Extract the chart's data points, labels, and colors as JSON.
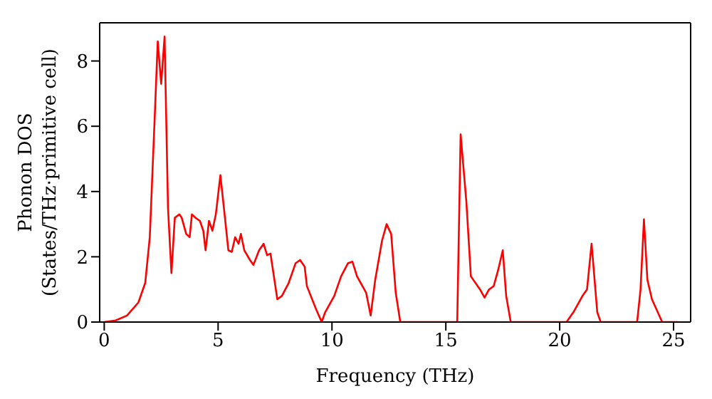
{
  "chart_data": {
    "type": "line",
    "xlabel": "Frequency (THz)",
    "ylabel": "Phonon DOS\n(States/THz·primitive cell)",
    "xlim": [
      -0.2,
      25.75
    ],
    "ylim": [
      0,
      9.17
    ],
    "xticks": [
      0,
      5,
      10,
      15,
      20,
      25
    ],
    "yticks": [
      0,
      2,
      4,
      6,
      8
    ],
    "grid": false,
    "legend": false,
    "marker": "none",
    "line_style": "solid",
    "x": [
      0,
      0.5,
      1,
      1.5,
      1.8,
      2,
      2.2,
      2.35,
      2.5,
      2.65,
      2.8,
      2.95,
      3.1,
      3.3,
      3.4,
      3.6,
      3.75,
      3.85,
      4,
      4.2,
      4.35,
      4.45,
      4.6,
      4.75,
      4.9,
      5.1,
      5.3,
      5.45,
      5.6,
      5.75,
      5.9,
      6,
      6.15,
      6.4,
      6.55,
      6.8,
      7,
      7.15,
      7.3,
      7.6,
      7.8,
      8.1,
      8.4,
      8.6,
      8.8,
      8.9,
      9.3,
      9.55,
      9.7,
      10.1,
      10.4,
      10.7,
      10.9,
      11.1,
      11.5,
      11.7,
      11.9,
      12.2,
      12.4,
      12.6,
      12.8,
      13,
      15.5,
      15.65,
      15.9,
      16.1,
      16.3,
      16.5,
      16.7,
      16.9,
      17.1,
      17.3,
      17.5,
      17.65,
      17.85,
      20.3,
      20.6,
      21,
      21.2,
      21.4,
      21.65,
      21.8,
      23.4,
      23.55,
      23.7,
      23.85,
      24.05,
      24.5,
      25.2
    ],
    "series": [
      {
        "color": "#ff0000",
        "values": [
          0,
          0.05,
          0.2,
          0.6,
          1.2,
          2.6,
          6,
          8.6,
          7.3,
          8.75,
          3.5,
          1.5,
          3.2,
          3.3,
          3.2,
          2.7,
          2.6,
          3.3,
          3.2,
          3.1,
          2.8,
          2.2,
          3.1,
          2.8,
          3.3,
          4.5,
          3.2,
          2.2,
          2.15,
          2.6,
          2.4,
          2.7,
          2.2,
          1.9,
          1.75,
          2.2,
          2.4,
          2.05,
          2.1,
          0.7,
          0.8,
          1.2,
          1.8,
          1.9,
          1.7,
          1.1,
          0.4,
          0,
          0.3,
          0.8,
          1.4,
          1.8,
          1.85,
          1.4,
          0.9,
          0.2,
          1.3,
          2.5,
          3,
          2.7,
          0.9,
          0,
          0,
          5.75,
          3.7,
          1.4,
          1.2,
          1,
          0.75,
          1,
          1.1,
          1.6,
          2.2,
          0.8,
          0,
          0,
          0.3,
          0.8,
          1,
          2.4,
          0.3,
          0,
          0,
          1,
          3.15,
          1.3,
          0.7,
          0,
          0
        ]
      }
    ]
  }
}
